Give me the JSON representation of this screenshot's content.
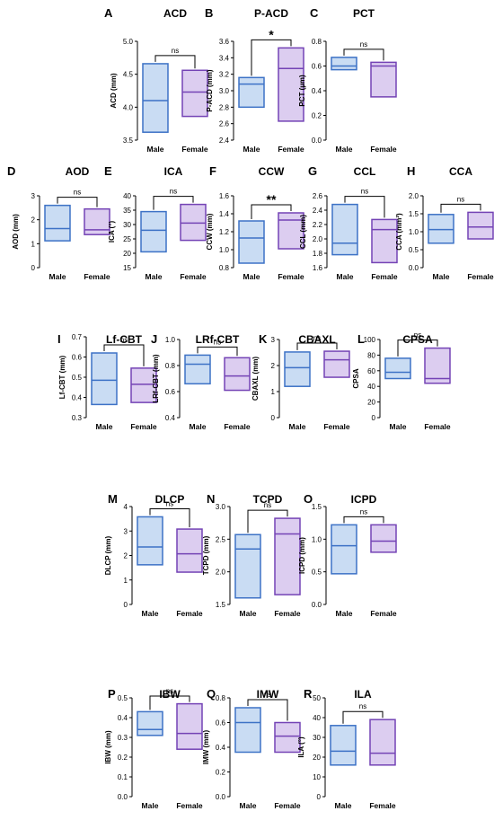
{
  "chart_data": [
    {
      "type": "box",
      "letter": "A",
      "title": "ACD",
      "ylabel": "ACD (mm)",
      "categories": [
        "Male",
        "Female"
      ],
      "ylim": [
        3.5,
        5.0
      ],
      "ticks": [
        "3.5",
        "4.0",
        "4.5",
        "5.0"
      ],
      "ticks_n": [
        3.5,
        4.0,
        4.5,
        5.0
      ],
      "significance": "ns",
      "boxes": [
        {
          "low": 3.62,
          "median": 4.1,
          "high": 4.66
        },
        {
          "low": 3.86,
          "median": 4.23,
          "high": 4.56
        }
      ]
    },
    {
      "type": "box",
      "letter": "B",
      "title": "P-ACD",
      "ylabel": "P-ACD (mm)",
      "categories": [
        "Male",
        "Female"
      ],
      "ylim": [
        2.4,
        3.6
      ],
      "ticks": [
        "2.4",
        "2.6",
        "2.8",
        "3.0",
        "3.2",
        "3.4",
        "3.6"
      ],
      "ticks_n": [
        2.4,
        2.6,
        2.8,
        3.0,
        3.2,
        3.4,
        3.6
      ],
      "significance": "*",
      "boxes": [
        {
          "low": 2.8,
          "median": 3.08,
          "high": 3.16
        },
        {
          "low": 2.63,
          "median": 3.27,
          "high": 3.52
        }
      ]
    },
    {
      "type": "box",
      "letter": "C",
      "title": "PCT",
      "ylabel": "PCT (µm)",
      "categories": [
        "Male",
        "Female"
      ],
      "ylim": [
        0.0,
        0.8
      ],
      "ticks": [
        "0.0",
        "0.2",
        "0.4",
        "0.6",
        "0.8"
      ],
      "ticks_n": [
        0.0,
        0.2,
        0.4,
        0.6,
        0.8
      ],
      "significance": "ns",
      "boxes": [
        {
          "low": 0.57,
          "median": 0.6,
          "high": 0.67
        },
        {
          "low": 0.35,
          "median": 0.6,
          "high": 0.63
        }
      ]
    },
    {
      "type": "box",
      "letter": "D",
      "title": "AOD",
      "ylabel": "AOD (mm)",
      "categories": [
        "Male",
        "Female"
      ],
      "ylim": [
        0,
        3
      ],
      "ticks": [
        "0",
        "1",
        "2",
        "3"
      ],
      "ticks_n": [
        0,
        1,
        2,
        3
      ],
      "significance": "ns",
      "boxes": [
        {
          "low": 1.12,
          "median": 1.63,
          "high": 2.6
        },
        {
          "low": 1.38,
          "median": 1.58,
          "high": 2.45
        }
      ]
    },
    {
      "type": "box",
      "letter": "E",
      "title": "ICA",
      "ylabel": "ICA (°)",
      "categories": [
        "Male",
        "Female"
      ],
      "ylim": [
        15,
        40
      ],
      "ticks": [
        "15",
        "20",
        "25",
        "30",
        "35",
        "40"
      ],
      "ticks_n": [
        15,
        20,
        25,
        30,
        35,
        40
      ],
      "significance": "ns",
      "boxes": [
        {
          "low": 20.5,
          "median": 28.0,
          "high": 34.5
        },
        {
          "low": 24.5,
          "median": 30.5,
          "high": 37.0
        }
      ]
    },
    {
      "type": "box",
      "letter": "F",
      "title": "CCW",
      "ylabel": "CCW (mm)",
      "categories": [
        "Male",
        "Female"
      ],
      "ylim": [
        0.8,
        1.6
      ],
      "ticks": [
        "0.8",
        "1.0",
        "1.2",
        "1.4",
        "1.6"
      ],
      "ticks_n": [
        0.8,
        1.0,
        1.2,
        1.4,
        1.6
      ],
      "significance": "**",
      "boxes": [
        {
          "low": 0.85,
          "median": 1.13,
          "high": 1.32
        },
        {
          "low": 1.01,
          "median": 1.33,
          "high": 1.41
        }
      ]
    },
    {
      "type": "box",
      "letter": "G",
      "title": "CCL",
      "ylabel": "CCL (mm)",
      "categories": [
        "Male",
        "Female"
      ],
      "ylim": [
        1.6,
        2.6
      ],
      "ticks": [
        "1.6",
        "1.8",
        "2.0",
        "2.2",
        "2.4",
        "2.6"
      ],
      "ticks_n": [
        1.6,
        1.8,
        2.0,
        2.2,
        2.4,
        2.6
      ],
      "significance": "ns",
      "boxes": [
        {
          "low": 1.78,
          "median": 1.94,
          "high": 2.48
        },
        {
          "low": 1.67,
          "median": 2.13,
          "high": 2.27
        }
      ]
    },
    {
      "type": "box",
      "letter": "H",
      "title": "CCA",
      "ylabel": "CCA (mm²)",
      "categories": [
        "Male",
        "Female"
      ],
      "ylim": [
        0.0,
        2.0
      ],
      "ticks": [
        "0.0",
        "0.5",
        "1.0",
        "1.5",
        "2.0"
      ],
      "ticks_n": [
        0.0,
        0.5,
        1.0,
        1.5,
        2.0
      ],
      "significance": "ns",
      "boxes": [
        {
          "low": 0.68,
          "median": 1.06,
          "high": 1.48
        },
        {
          "low": 0.8,
          "median": 1.13,
          "high": 1.54
        }
      ]
    },
    {
      "type": "box",
      "letter": "I",
      "title": "Lf-CBT",
      "ylabel": "Lf-CBT (mm)",
      "categories": [
        "Male",
        "Female"
      ],
      "ylim": [
        0.3,
        0.7
      ],
      "ticks": [
        "0.3",
        "0.4",
        "0.5",
        "0.6",
        "0.7"
      ],
      "ticks_n": [
        0.3,
        0.4,
        0.5,
        0.6,
        0.7
      ],
      "significance": "ns",
      "boxes": [
        {
          "low": 0.365,
          "median": 0.485,
          "high": 0.62
        },
        {
          "low": 0.375,
          "median": 0.465,
          "high": 0.545
        }
      ]
    },
    {
      "type": "box",
      "letter": "J",
      "title": "LRf-CBT",
      "ylabel": "LRf-CBT (mm)",
      "categories": [
        "Male",
        "Female"
      ],
      "ylim": [
        0.4,
        1.0
      ],
      "ticks": [
        "0.4",
        "0.6",
        "0.8",
        "1.0"
      ],
      "ticks_n": [
        0.4,
        0.6,
        0.8,
        1.0
      ],
      "significance": "ns",
      "boxes": [
        {
          "low": 0.66,
          "median": 0.81,
          "high": 0.88
        },
        {
          "low": 0.61,
          "median": 0.72,
          "high": 0.86
        }
      ]
    },
    {
      "type": "box",
      "letter": "K",
      "title": "CBAXL",
      "ylabel": "CBAXL (mm)",
      "categories": [
        "Male",
        "Female"
      ],
      "ylim": [
        0,
        3
      ],
      "ticks": [
        "0",
        "1",
        "2",
        "3"
      ],
      "ticks_n": [
        0,
        1,
        2,
        3
      ],
      "significance": "ns",
      "boxes": [
        {
          "low": 1.2,
          "median": 1.92,
          "high": 2.52
        },
        {
          "low": 1.55,
          "median": 2.22,
          "high": 2.55
        }
      ]
    },
    {
      "type": "box",
      "letter": "L",
      "title": "CPSA",
      "ylabel": "CPSA",
      "categories": [
        "Male",
        "Female"
      ],
      "ylim": [
        0,
        100
      ],
      "ticks": [
        "0",
        "20",
        "40",
        "60",
        "80",
        "100"
      ],
      "ticks_n": [
        0,
        20,
        40,
        60,
        80,
        100
      ],
      "significance": "ns",
      "boxes": [
        {
          "low": 50,
          "median": 58,
          "high": 76
        },
        {
          "low": 44,
          "median": 50,
          "high": 89
        }
      ]
    },
    {
      "type": "box",
      "letter": "M",
      "title": "DLCP",
      "ylabel": "DLCP (mm)",
      "categories": [
        "Male",
        "Female"
      ],
      "ylim": [
        0,
        4
      ],
      "ticks": [
        "0",
        "1",
        "2",
        "3",
        "4"
      ],
      "ticks_n": [
        0,
        1,
        2,
        3,
        4
      ],
      "significance": "ns",
      "boxes": [
        {
          "low": 1.62,
          "median": 2.35,
          "high": 3.58
        },
        {
          "low": 1.32,
          "median": 2.07,
          "high": 3.08
        }
      ]
    },
    {
      "type": "box",
      "letter": "N",
      "title": "TCPD",
      "ylabel": "TCPD (mm)",
      "categories": [
        "Male",
        "Female"
      ],
      "ylim": [
        1.5,
        3.0
      ],
      "ticks": [
        "1.5",
        "2.0",
        "2.5",
        "3.0"
      ],
      "ticks_n": [
        1.5,
        2.0,
        2.5,
        3.0
      ],
      "significance": "ns",
      "boxes": [
        {
          "low": 1.6,
          "median": 2.35,
          "high": 2.57
        },
        {
          "low": 1.65,
          "median": 2.58,
          "high": 2.82
        }
      ]
    },
    {
      "type": "box",
      "letter": "O",
      "title": "ICPD",
      "ylabel": "ICPD (mm)",
      "categories": [
        "Male",
        "Female"
      ],
      "ylim": [
        0.0,
        1.5
      ],
      "ticks": [
        "0.0",
        "0.5",
        "1.0",
        "1.5"
      ],
      "ticks_n": [
        0.0,
        0.5,
        1.0,
        1.5
      ],
      "significance": "ns",
      "boxes": [
        {
          "low": 0.47,
          "median": 0.9,
          "high": 1.22
        },
        {
          "low": 0.8,
          "median": 0.97,
          "high": 1.22
        }
      ]
    },
    {
      "type": "box",
      "letter": "P",
      "title": "IBW",
      "ylabel": "IBW (mm)",
      "categories": [
        "Male",
        "Female"
      ],
      "ylim": [
        0.0,
        0.5
      ],
      "ticks": [
        "0.0",
        "0.1",
        "0.2",
        "0.3",
        "0.4",
        "0.5"
      ],
      "ticks_n": [
        0.0,
        0.1,
        0.2,
        0.3,
        0.4,
        0.5
      ],
      "significance": "ns",
      "boxes": [
        {
          "low": 0.31,
          "median": 0.34,
          "high": 0.43
        },
        {
          "low": 0.24,
          "median": 0.32,
          "high": 0.47
        }
      ]
    },
    {
      "type": "box",
      "letter": "Q",
      "title": "IMW",
      "ylabel": "IMW (mm)",
      "categories": [
        "Male",
        "Female"
      ],
      "ylim": [
        0.0,
        0.8
      ],
      "ticks": [
        "0.0",
        "0.2",
        "0.4",
        "0.6",
        "0.8"
      ],
      "ticks_n": [
        0.0,
        0.2,
        0.4,
        0.6,
        0.8
      ],
      "significance": "ns",
      "boxes": [
        {
          "low": 0.36,
          "median": 0.6,
          "high": 0.72
        },
        {
          "low": 0.36,
          "median": 0.49,
          "high": 0.6
        }
      ]
    },
    {
      "type": "box",
      "letter": "R",
      "title": "ILA",
      "ylabel": "ILA (°)",
      "categories": [
        "Male",
        "Female"
      ],
      "ylim": [
        0,
        50
      ],
      "ticks": [
        "0",
        "10",
        "20",
        "30",
        "40",
        "50"
      ],
      "ticks_n": [
        0,
        10,
        20,
        30,
        40,
        50
      ],
      "significance": "ns",
      "boxes": [
        {
          "low": 16,
          "median": 23,
          "high": 36
        },
        {
          "low": 16,
          "median": 22,
          "high": 39
        }
      ]
    }
  ],
  "colors": {
    "male_fill": "#c9dcf3",
    "male_stroke": "#3d72c6",
    "female_fill": "#dccdf0",
    "female_stroke": "#7443b5",
    "axis": "#000000"
  }
}
